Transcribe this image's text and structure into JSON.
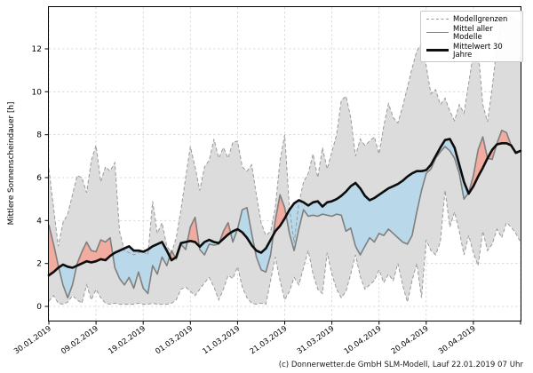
{
  "chart_data": {
    "type": "line",
    "title": "",
    "ylabel": "Mittlere Sonnenscheindauer [h]",
    "footer": "(c) Donnerwetter.de GmbH SLM-Modell, Lauf 22.01.2019 07 Uhr",
    "x_start_date": "30.01.2019",
    "x_step_days": 1,
    "xlim_days": [
      0,
      100
    ],
    "ylim": [
      -0.66,
      13.94
    ],
    "grid": true,
    "legend_position": "upper right",
    "x_tick_days": [
      0,
      10,
      20,
      30,
      40,
      50,
      60,
      70,
      80,
      90
    ],
    "x_tick_labels": [
      "30.01.2019",
      "09.02.2019",
      "19.02.2019",
      "01.03.2019",
      "11.03.2019",
      "21.03.2019",
      "31.03.2019",
      "10.04.2019",
      "20.04.2019",
      "30.04.2019"
    ],
    "extra_unlabeled_tick_day": 100,
    "y_ticks": [
      0,
      2,
      4,
      6,
      8,
      10,
      12
    ],
    "legend": [
      {
        "label": "Modellgrenzen",
        "style": "dashed-gray"
      },
      {
        "label": "Mittel aller Modelle",
        "style": "solid-gray"
      },
      {
        "label": "Mittelwert 30 Jahre",
        "style": "solid-black-thick"
      }
    ],
    "colors": {
      "band_fill": "#dcdcdc",
      "band_edge": "#9a9a9a",
      "model_mean_line": "#7f7f7f",
      "climate_mean_line": "#0d0d0d",
      "above_normal_fill": "#f1ab9f",
      "below_normal_fill": "#b9d8ea",
      "grid_line": "#d4d4d4",
      "spine": "#000000"
    },
    "series": [
      {
        "name": "Modellgrenze Maximum",
        "role": "band_upper",
        "values": [
          6.4,
          4.6,
          2.8,
          3.9,
          4.3,
          5.2,
          6.1,
          6.0,
          5.3,
          6.8,
          7.5,
          5.8,
          6.5,
          6.3,
          6.7,
          3.5,
          2.6,
          2.5,
          2.4,
          2.5,
          2.55,
          2.4,
          4.9,
          3.4,
          3.9,
          2.8,
          2.5,
          3.2,
          4.5,
          6.0,
          7.45,
          6.5,
          5.4,
          6.5,
          6.8,
          7.8,
          6.9,
          7.4,
          6.9,
          7.65,
          7.7,
          6.5,
          6.3,
          6.6,
          5.2,
          3.9,
          3.3,
          3.5,
          4.6,
          6.8,
          8.0,
          4.6,
          2.95,
          4.8,
          5.8,
          6.2,
          7.1,
          6.0,
          7.4,
          6.4,
          7.2,
          8.0,
          9.6,
          9.8,
          8.8,
          7.0,
          7.8,
          7.5,
          7.7,
          7.9,
          7.1,
          8.4,
          9.45,
          8.8,
          8.55,
          9.3,
          10.2,
          11.1,
          11.9,
          12.25,
          11.2,
          9.9,
          10.1,
          9.4,
          9.7,
          9.1,
          8.65,
          9.4,
          9.0,
          10.4,
          11.8,
          12.0,
          9.4,
          8.6,
          10.2,
          12.2,
          13.4,
          13.6,
          13.5,
          13.4,
          13.2
        ]
      },
      {
        "name": "Modellgrenze Minimum",
        "role": "band_lower",
        "values": [
          0.25,
          0.5,
          0.15,
          0.1,
          0.2,
          0.5,
          0.3,
          0.15,
          1.0,
          0.3,
          0.8,
          0.4,
          0.15,
          0.1,
          0.15,
          0.1,
          0.1,
          0.1,
          0.1,
          0.15,
          0.1,
          0.1,
          0.15,
          0.1,
          0.1,
          0.1,
          0.15,
          0.3,
          0.8,
          0.9,
          0.7,
          0.5,
          0.8,
          1.1,
          1.35,
          0.9,
          0.3,
          0.8,
          1.45,
          1.3,
          1.85,
          0.9,
          0.4,
          0.15,
          0.1,
          0.15,
          0.1,
          1.2,
          2.3,
          1.2,
          0.3,
          0.7,
          1.35,
          1.0,
          1.8,
          2.6,
          1.5,
          0.8,
          0.6,
          2.5,
          1.5,
          0.8,
          0.4,
          0.7,
          1.5,
          2.4,
          1.4,
          0.8,
          1.0,
          1.2,
          1.7,
          1.1,
          1.5,
          1.2,
          2.0,
          1.0,
          0.2,
          1.2,
          2.0,
          0.4,
          3.1,
          2.6,
          2.4,
          3.0,
          5.4,
          3.7,
          4.4,
          3.5,
          2.4,
          3.3,
          2.5,
          1.9,
          3.5,
          2.6,
          2.9,
          3.6,
          3.2,
          3.9,
          3.7,
          3.4,
          3.0
        ]
      },
      {
        "name": "Mittel aller Modelle",
        "role": "model_mean",
        "values": [
          3.8,
          2.9,
          1.9,
          1.0,
          0.4,
          1.0,
          2.0,
          2.55,
          3.0,
          2.6,
          2.55,
          3.1,
          3.0,
          3.2,
          1.8,
          1.3,
          1.0,
          1.35,
          0.85,
          1.6,
          0.85,
          0.6,
          1.9,
          1.5,
          2.3,
          1.9,
          2.6,
          2.2,
          2.9,
          2.65,
          3.7,
          4.15,
          2.65,
          2.4,
          2.9,
          2.85,
          2.9,
          3.5,
          3.9,
          3.0,
          3.6,
          4.5,
          4.6,
          3.4,
          2.3,
          1.7,
          1.6,
          2.4,
          4.0,
          5.2,
          4.6,
          3.4,
          2.6,
          3.6,
          4.5,
          4.2,
          4.25,
          4.2,
          4.3,
          4.25,
          4.2,
          4.3,
          4.25,
          3.5,
          3.65,
          2.8,
          2.4,
          2.8,
          3.2,
          3.0,
          3.4,
          3.3,
          3.6,
          3.4,
          3.2,
          3.0,
          2.9,
          3.3,
          4.4,
          5.4,
          6.2,
          6.4,
          6.9,
          7.2,
          7.45,
          7.25,
          6.9,
          6.2,
          5.0,
          5.3,
          6.1,
          7.3,
          7.9,
          6.9,
          6.85,
          7.6,
          8.2,
          8.1,
          7.5,
          7.2,
          7.25
        ]
      },
      {
        "name": "Mittelwert 30 Jahre",
        "role": "climate_mean",
        "values": [
          1.45,
          1.6,
          1.8,
          1.95,
          1.85,
          1.8,
          1.9,
          2.0,
          2.1,
          2.05,
          2.1,
          2.2,
          2.15,
          2.35,
          2.5,
          2.6,
          2.7,
          2.8,
          2.6,
          2.6,
          2.55,
          2.65,
          2.8,
          2.9,
          3.0,
          2.6,
          2.15,
          2.3,
          2.95,
          3.0,
          3.05,
          3.0,
          2.78,
          3.0,
          3.1,
          3.0,
          2.95,
          3.15,
          3.35,
          3.5,
          3.6,
          3.45,
          3.2,
          2.85,
          2.6,
          2.5,
          2.7,
          3.1,
          3.5,
          3.75,
          4.1,
          4.5,
          4.8,
          4.95,
          4.85,
          4.7,
          4.85,
          4.9,
          4.65,
          4.85,
          4.9,
          5.0,
          5.15,
          5.35,
          5.6,
          5.75,
          5.5,
          5.15,
          4.95,
          5.05,
          5.2,
          5.35,
          5.5,
          5.6,
          5.7,
          5.85,
          6.05,
          6.2,
          6.3,
          6.3,
          6.35,
          6.6,
          7.0,
          7.4,
          7.75,
          7.8,
          7.4,
          6.6,
          5.8,
          5.25,
          5.6,
          6.05,
          6.45,
          6.9,
          7.3,
          7.55,
          7.6,
          7.6,
          7.5,
          7.15,
          7.25
        ]
      }
    ]
  }
}
